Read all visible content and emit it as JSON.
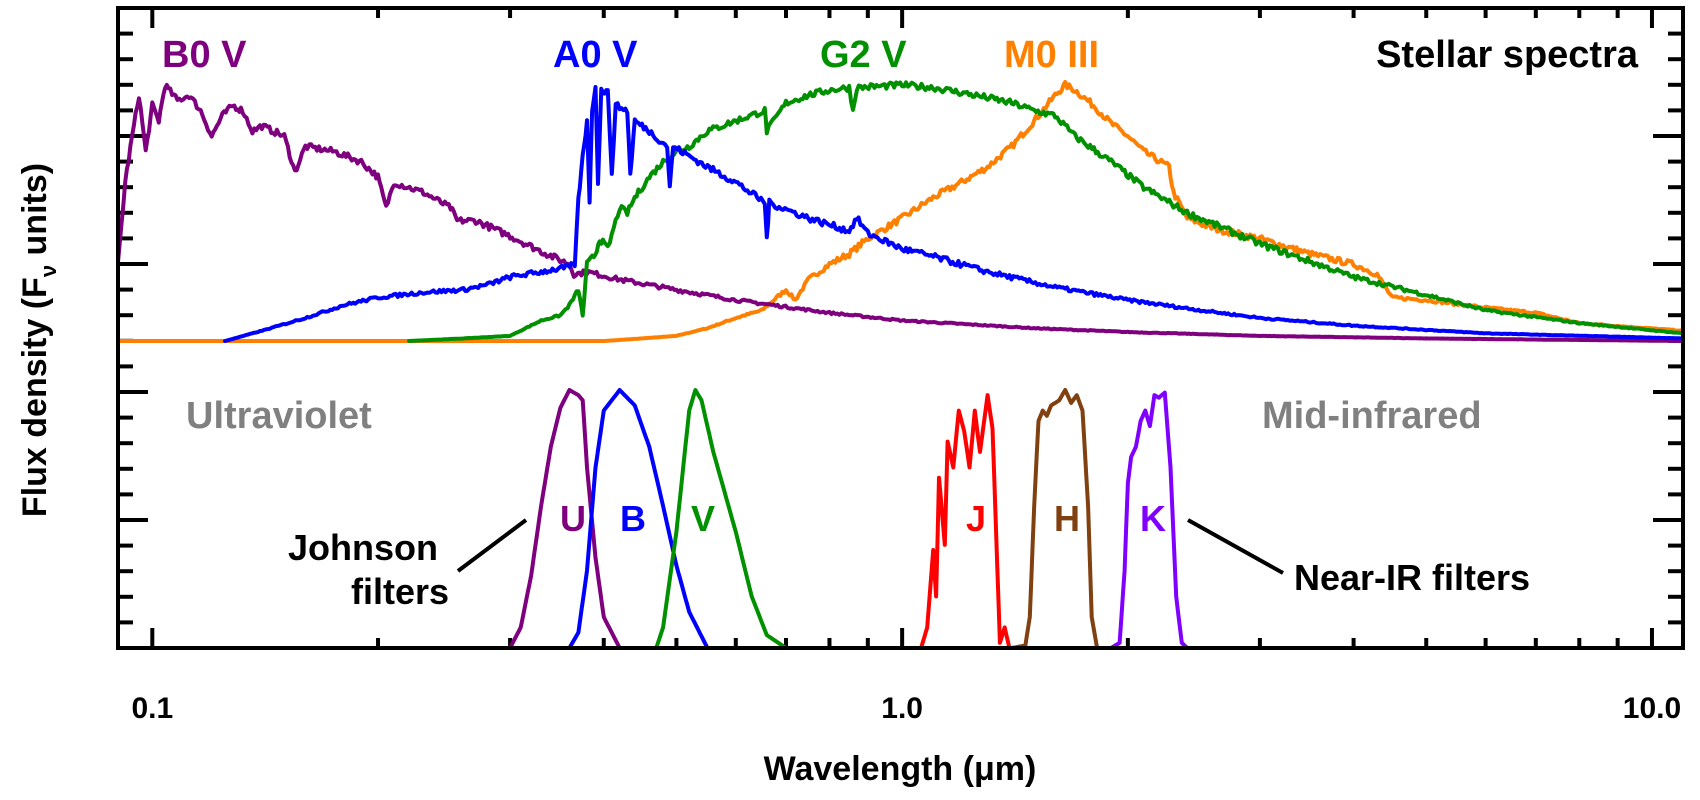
{
  "chart_data": {
    "type": "line",
    "title": "Stellar spectra",
    "xlabel": "Wavelength (μm)",
    "ylabel_main": "Flux density (F",
    "ylabel_sub": "ν",
    "ylabel_tail": " units)",
    "xscale": "log",
    "xlim": [
      0.09,
      11.0
    ],
    "x_ticks": [
      {
        "value": 0.1,
        "label": "0.1"
      },
      {
        "value": 1.0,
        "label": "1.0"
      },
      {
        "value": 10.0,
        "label": "10.0"
      }
    ],
    "y_tick_labels": "none",
    "ylim_panel_spectra": [
      0,
      1.0
    ],
    "ylim_panel_filters": [
      0,
      1.0
    ],
    "grid": false,
    "spectra": [
      {
        "name": "B0 V",
        "color": "#7f007f",
        "points": [
          [
            0.09,
            0.3
          ],
          [
            0.092,
            0.62
          ],
          [
            0.094,
            0.8
          ],
          [
            0.096,
            0.96
          ],
          [
            0.098,
            0.74
          ],
          [
            0.1,
            0.92
          ],
          [
            0.102,
            0.86
          ],
          [
            0.104,
            1.0
          ],
          [
            0.108,
            0.94
          ],
          [
            0.112,
            0.96
          ],
          [
            0.116,
            0.9
          ],
          [
            0.12,
            0.8
          ],
          [
            0.124,
            0.88
          ],
          [
            0.128,
            0.92
          ],
          [
            0.132,
            0.9
          ],
          [
            0.136,
            0.82
          ],
          [
            0.14,
            0.84
          ],
          [
            0.15,
            0.8
          ],
          [
            0.155,
            0.66
          ],
          [
            0.16,
            0.76
          ],
          [
            0.175,
            0.74
          ],
          [
            0.19,
            0.7
          ],
          [
            0.2,
            0.64
          ],
          [
            0.205,
            0.52
          ],
          [
            0.21,
            0.62
          ],
          [
            0.23,
            0.58
          ],
          [
            0.25,
            0.52
          ],
          [
            0.255,
            0.47
          ],
          [
            0.27,
            0.47
          ],
          [
            0.3,
            0.41
          ],
          [
            0.33,
            0.35
          ],
          [
            0.36,
            0.3
          ],
          [
            0.365,
            0.26
          ],
          [
            0.38,
            0.27
          ],
          [
            0.42,
            0.24
          ],
          [
            0.5,
            0.2
          ],
          [
            0.6,
            0.16
          ],
          [
            0.8,
            0.11
          ],
          [
            1.0,
            0.08
          ],
          [
            1.5,
            0.05
          ],
          [
            2.0,
            0.035
          ],
          [
            3.0,
            0.02
          ],
          [
            5.0,
            0.01
          ],
          [
            11.0,
            0.0
          ]
        ]
      },
      {
        "name": "A0 V",
        "color": "#0000ff",
        "points": [
          [
            0.125,
            0.0
          ],
          [
            0.14,
            0.04
          ],
          [
            0.16,
            0.09
          ],
          [
            0.18,
            0.14
          ],
          [
            0.2,
            0.17
          ],
          [
            0.23,
            0.19
          ],
          [
            0.26,
            0.2
          ],
          [
            0.28,
            0.22
          ],
          [
            0.3,
            0.25
          ],
          [
            0.33,
            0.27
          ],
          [
            0.36,
            0.29
          ],
          [
            0.366,
            0.3
          ],
          [
            0.37,
            0.55
          ],
          [
            0.375,
            0.72
          ],
          [
            0.38,
            0.86
          ],
          [
            0.383,
            0.55
          ],
          [
            0.386,
            0.9
          ],
          [
            0.39,
            1.0
          ],
          [
            0.393,
            0.62
          ],
          [
            0.397,
            0.98
          ],
          [
            0.405,
            0.97
          ],
          [
            0.41,
            0.66
          ],
          [
            0.415,
            0.92
          ],
          [
            0.43,
            0.9
          ],
          [
            0.434,
            0.65
          ],
          [
            0.44,
            0.86
          ],
          [
            0.46,
            0.82
          ],
          [
            0.486,
            0.76
          ],
          [
            0.49,
            0.6
          ],
          [
            0.495,
            0.76
          ],
          [
            0.55,
            0.68
          ],
          [
            0.6,
            0.62
          ],
          [
            0.656,
            0.54
          ],
          [
            0.66,
            0.4
          ],
          [
            0.665,
            0.54
          ],
          [
            0.75,
            0.48
          ],
          [
            0.85,
            0.43
          ],
          [
            0.87,
            0.48
          ],
          [
            0.9,
            0.42
          ],
          [
            1.0,
            0.36
          ],
          [
            1.1,
            0.33
          ],
          [
            1.3,
            0.27
          ],
          [
            1.6,
            0.21
          ],
          [
            2.0,
            0.16
          ],
          [
            2.5,
            0.12
          ],
          [
            3.0,
            0.09
          ],
          [
            4.0,
            0.06
          ],
          [
            6.0,
            0.03
          ],
          [
            11.0,
            0.01
          ]
        ]
      },
      {
        "name": "G2 V",
        "color": "#009000",
        "points": [
          [
            0.22,
            0.0
          ],
          [
            0.26,
            0.01
          ],
          [
            0.3,
            0.02
          ],
          [
            0.33,
            0.08
          ],
          [
            0.35,
            0.1
          ],
          [
            0.36,
            0.14
          ],
          [
            0.37,
            0.2
          ],
          [
            0.375,
            0.1
          ],
          [
            0.38,
            0.3
          ],
          [
            0.39,
            0.34
          ],
          [
            0.395,
            0.4
          ],
          [
            0.405,
            0.36
          ],
          [
            0.42,
            0.52
          ],
          [
            0.43,
            0.5
          ],
          [
            0.44,
            0.56
          ],
          [
            0.46,
            0.64
          ],
          [
            0.48,
            0.7
          ],
          [
            0.5,
            0.74
          ],
          [
            0.52,
            0.76
          ],
          [
            0.55,
            0.82
          ],
          [
            0.6,
            0.86
          ],
          [
            0.656,
            0.9
          ],
          [
            0.66,
            0.82
          ],
          [
            0.7,
            0.93
          ],
          [
            0.75,
            0.96
          ],
          [
            0.8,
            0.98
          ],
          [
            0.85,
            0.99
          ],
          [
            0.86,
            0.9
          ],
          [
            0.87,
            0.99
          ],
          [
            1.0,
            1.0
          ],
          [
            1.1,
            0.99
          ],
          [
            1.2,
            0.97
          ],
          [
            1.3,
            0.95
          ],
          [
            1.4,
            0.93
          ],
          [
            1.5,
            0.9
          ],
          [
            1.6,
            0.88
          ],
          [
            1.7,
            0.8
          ],
          [
            1.9,
            0.7
          ],
          [
            2.1,
            0.6
          ],
          [
            2.4,
            0.5
          ],
          [
            3.0,
            0.38
          ],
          [
            4.0,
            0.25
          ],
          [
            5.0,
            0.18
          ],
          [
            6.0,
            0.12
          ],
          [
            8.0,
            0.07
          ],
          [
            11.0,
            0.03
          ]
        ]
      },
      {
        "name": "M0 III",
        "color": "#ff8000",
        "points": [
          [
            0.09,
            0.0
          ],
          [
            0.4,
            0.0
          ],
          [
            0.45,
            0.01
          ],
          [
            0.5,
            0.02
          ],
          [
            0.55,
            0.05
          ],
          [
            0.6,
            0.09
          ],
          [
            0.65,
            0.12
          ],
          [
            0.7,
            0.2
          ],
          [
            0.72,
            0.16
          ],
          [
            0.75,
            0.24
          ],
          [
            0.8,
            0.3
          ],
          [
            0.85,
            0.34
          ],
          [
            0.9,
            0.4
          ],
          [
            1.0,
            0.48
          ],
          [
            1.1,
            0.56
          ],
          [
            1.2,
            0.62
          ],
          [
            1.3,
            0.68
          ],
          [
            1.4,
            0.76
          ],
          [
            1.5,
            0.86
          ],
          [
            1.6,
            0.96
          ],
          [
            1.65,
            1.0
          ],
          [
            1.7,
            0.98
          ],
          [
            1.8,
            0.92
          ],
          [
            1.9,
            0.85
          ],
          [
            2.0,
            0.8
          ],
          [
            2.1,
            0.74
          ],
          [
            2.27,
            0.68
          ],
          [
            2.3,
            0.58
          ],
          [
            2.4,
            0.48
          ],
          [
            2.6,
            0.44
          ],
          [
            3.0,
            0.4
          ],
          [
            3.5,
            0.34
          ],
          [
            4.0,
            0.3
          ],
          [
            4.3,
            0.26
          ],
          [
            4.5,
            0.17
          ],
          [
            5.0,
            0.16
          ],
          [
            6.0,
            0.13
          ],
          [
            7.0,
            0.11
          ],
          [
            8.0,
            0.07
          ],
          [
            11.0,
            0.04
          ]
        ]
      }
    ],
    "filters": [
      {
        "name": "U",
        "group": "Johnson",
        "color": "#7f007f",
        "points": [
          [
            0.3,
            0.0
          ],
          [
            0.31,
            0.08
          ],
          [
            0.32,
            0.28
          ],
          [
            0.33,
            0.55
          ],
          [
            0.34,
            0.78
          ],
          [
            0.35,
            0.93
          ],
          [
            0.36,
            1.0
          ],
          [
            0.37,
            0.98
          ],
          [
            0.375,
            0.96
          ],
          [
            0.38,
            0.7
          ],
          [
            0.39,
            0.35
          ],
          [
            0.4,
            0.12
          ],
          [
            0.42,
            0.0
          ]
        ]
      },
      {
        "name": "B",
        "group": "Johnson",
        "color": "#0000ff",
        "points": [
          [
            0.36,
            0.0
          ],
          [
            0.37,
            0.06
          ],
          [
            0.38,
            0.3
          ],
          [
            0.39,
            0.7
          ],
          [
            0.4,
            0.92
          ],
          [
            0.42,
            1.0
          ],
          [
            0.44,
            0.94
          ],
          [
            0.46,
            0.78
          ],
          [
            0.48,
            0.55
          ],
          [
            0.5,
            0.32
          ],
          [
            0.52,
            0.14
          ],
          [
            0.55,
            0.0
          ]
        ]
      },
      {
        "name": "V",
        "group": "Johnson",
        "color": "#009000",
        "points": [
          [
            0.47,
            0.0
          ],
          [
            0.48,
            0.08
          ],
          [
            0.5,
            0.45
          ],
          [
            0.52,
            0.92
          ],
          [
            0.53,
            1.0
          ],
          [
            0.54,
            0.96
          ],
          [
            0.56,
            0.76
          ],
          [
            0.6,
            0.45
          ],
          [
            0.63,
            0.2
          ],
          [
            0.66,
            0.05
          ],
          [
            0.7,
            0.0
          ]
        ]
      },
      {
        "name": "J",
        "group": "Near-IR",
        "color": "#ff0000",
        "points": [
          [
            1.06,
            0.0
          ],
          [
            1.08,
            0.08
          ],
          [
            1.1,
            0.38
          ],
          [
            1.11,
            0.2
          ],
          [
            1.12,
            0.66
          ],
          [
            1.14,
            0.4
          ],
          [
            1.15,
            0.8
          ],
          [
            1.17,
            0.7
          ],
          [
            1.19,
            0.92
          ],
          [
            1.21,
            0.84
          ],
          [
            1.23,
            0.7
          ],
          [
            1.25,
            0.92
          ],
          [
            1.27,
            0.76
          ],
          [
            1.3,
            0.98
          ],
          [
            1.32,
            0.85
          ],
          [
            1.34,
            0.3
          ],
          [
            1.35,
            0.02
          ],
          [
            1.37,
            0.08
          ],
          [
            1.39,
            0.0
          ],
          [
            1.4,
            0.0
          ]
        ]
      },
      {
        "name": "H",
        "group": "Near-IR",
        "color": "#804010",
        "points": [
          [
            1.4,
            0.0
          ],
          [
            1.46,
            0.01
          ],
          [
            1.48,
            0.12
          ],
          [
            1.5,
            0.55
          ],
          [
            1.52,
            0.88
          ],
          [
            1.54,
            0.92
          ],
          [
            1.56,
            0.9
          ],
          [
            1.58,
            0.94
          ],
          [
            1.62,
            0.96
          ],
          [
            1.65,
            1.0
          ],
          [
            1.68,
            0.95
          ],
          [
            1.71,
            0.98
          ],
          [
            1.74,
            0.92
          ],
          [
            1.77,
            0.55
          ],
          [
            1.79,
            0.12
          ],
          [
            1.82,
            0.0
          ],
          [
            1.9,
            0.0
          ]
        ]
      },
      {
        "name": "K",
        "group": "Near-IR",
        "color": "#8000ff",
        "points": [
          [
            1.9,
            0.0
          ],
          [
            1.95,
            0.02
          ],
          [
            1.98,
            0.3
          ],
          [
            2.0,
            0.64
          ],
          [
            2.02,
            0.74
          ],
          [
            2.05,
            0.78
          ],
          [
            2.08,
            0.88
          ],
          [
            2.11,
            0.92
          ],
          [
            2.14,
            0.86
          ],
          [
            2.17,
            0.98
          ],
          [
            2.2,
            0.97
          ],
          [
            2.24,
            0.99
          ],
          [
            2.28,
            0.7
          ],
          [
            2.32,
            0.2
          ],
          [
            2.36,
            0.02
          ],
          [
            2.4,
            0.0
          ]
        ]
      }
    ],
    "annotations": {
      "ultraviolet": "Ultraviolet",
      "mid_infrared": "Mid-infrared",
      "johnson_line1": "Johnson",
      "johnson_line2": "filters",
      "nearir": "Near-IR filters"
    },
    "legend": "inline-labels"
  }
}
